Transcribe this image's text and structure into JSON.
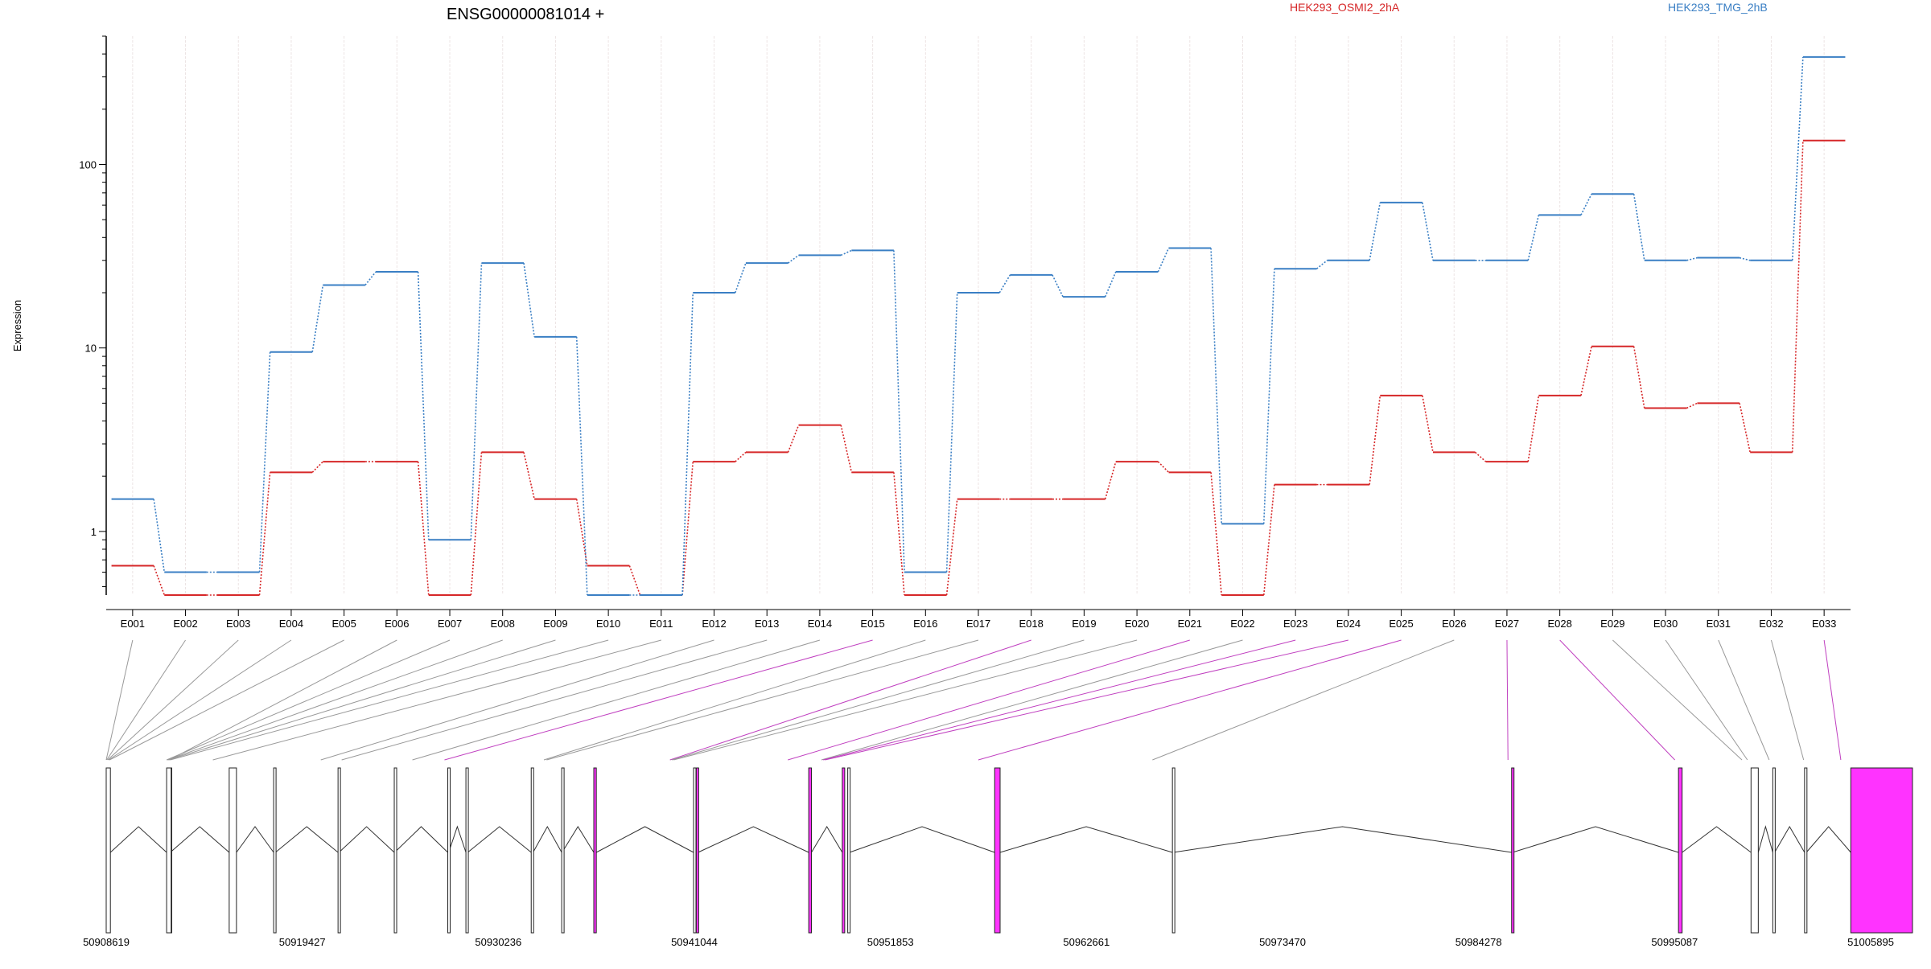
{
  "chart_data": {
    "type": "line",
    "title": "ENSG00000081014 +",
    "ylabel": "Expression",
    "xlabel": "",
    "y_scale": "log",
    "ylim": [
      0.45,
      500
    ],
    "y_ticks": [
      {
        "value": 1,
        "label": "1"
      },
      {
        "value": 10,
        "label": "10"
      },
      {
        "value": 100,
        "label": "100"
      }
    ],
    "grid": true,
    "legend": "top",
    "categories": [
      "E001",
      "E002",
      "E003",
      "E004",
      "E005",
      "E006",
      "E007",
      "E008",
      "E009",
      "E010",
      "E011",
      "E012",
      "E013",
      "E014",
      "E015",
      "E016",
      "E017",
      "E018",
      "E019",
      "E020",
      "E021",
      "E022",
      "E023",
      "E024",
      "E025",
      "E026",
      "E027",
      "E028",
      "E029",
      "E030",
      "E031",
      "E032",
      "E033"
    ],
    "series": [
      {
        "name": "HEK293_OSMI2_2hA",
        "color": "#d62728",
        "values": [
          0.65,
          0.45,
          0.45,
          2.1,
          2.4,
          2.4,
          0.45,
          2.7,
          1.5,
          0.65,
          0.45,
          2.4,
          2.7,
          3.8,
          2.1,
          0.45,
          1.5,
          1.5,
          1.5,
          2.4,
          2.1,
          0.45,
          1.8,
          1.8,
          5.5,
          2.7,
          2.4,
          5.5,
          10.2,
          4.7,
          5.0,
          2.7,
          135
        ]
      },
      {
        "name": "HEK293_TMG_2hB",
        "color": "#3a7fc4",
        "values": [
          1.5,
          0.6,
          0.6,
          9.5,
          22,
          26,
          0.9,
          29,
          11.5,
          0.45,
          0.45,
          20,
          29,
          32,
          34,
          0.6,
          20,
          25,
          19,
          26,
          35,
          1.1,
          27,
          30,
          62,
          30,
          30,
          53,
          69,
          30,
          31,
          30,
          385
        ]
      }
    ],
    "gene_model": {
      "coordinate_labels": [
        "50908619",
        "50919427",
        "50930236",
        "50941044",
        "50951853",
        "50962661",
        "50973470",
        "50984278",
        "50995087",
        "51005895"
      ],
      "exon_color_significant": "#ff33ff",
      "exon_color_normal": "#ffffff",
      "exon_bins": [
        {
          "start": 50908619,
          "end": 50908850,
          "significant": false
        },
        {
          "start": 50912100,
          "end": 50912150,
          "significant": false
        },
        {
          "start": 50911950,
          "end": 50912200,
          "significant": false
        },
        {
          "start": 50915400,
          "end": 50915800,
          "significant": false
        },
        {
          "start": 50917850,
          "end": 50917950,
          "significant": false
        },
        {
          "start": 50921400,
          "end": 50921450,
          "significant": false
        },
        {
          "start": 50924500,
          "end": 50924520,
          "significant": false
        },
        {
          "start": 50927450,
          "end": 50927500,
          "significant": false
        },
        {
          "start": 50928450,
          "end": 50928550,
          "significant": false
        },
        {
          "start": 50932050,
          "end": 50932150,
          "significant": false
        },
        {
          "start": 50933730,
          "end": 50933750,
          "significant": false
        },
        {
          "start": 50935500,
          "end": 50935640,
          "significant": true
        },
        {
          "start": 50941000,
          "end": 50941100,
          "significant": false
        },
        {
          "start": 50941150,
          "end": 50941250,
          "significant": true
        },
        {
          "start": 50947350,
          "end": 50947500,
          "significant": true
        },
        {
          "start": 50949200,
          "end": 50949300,
          "significant": true
        },
        {
          "start": 50949500,
          "end": 50949600,
          "significant": false
        },
        {
          "start": 50957600,
          "end": 50957900,
          "significant": true
        },
        {
          "start": 50967400,
          "end": 50967450,
          "significant": false
        },
        {
          "start": 50986100,
          "end": 50986150,
          "significant": true
        },
        {
          "start": 50995300,
          "end": 50995500,
          "significant": true
        },
        {
          "start": 50999300,
          "end": 50999700,
          "significant": false
        },
        {
          "start": 51000500,
          "end": 51000600,
          "significant": false
        },
        {
          "start": 51002250,
          "end": 51002350,
          "significant": false
        },
        {
          "start": 51004800,
          "end": 51008200,
          "significant": true
        }
      ],
      "exon_links": [
        {
          "exon": 1,
          "coord": 50908619,
          "significant": false
        },
        {
          "exon": 2,
          "coord": 50908650,
          "significant": false
        },
        {
          "exon": 3,
          "coord": 50908700,
          "significant": false
        },
        {
          "exon": 4,
          "coord": 50908750,
          "significant": false
        },
        {
          "exon": 5,
          "coord": 50908800,
          "significant": false
        },
        {
          "exon": 6,
          "coord": 50912100,
          "significant": false
        },
        {
          "exon": 7,
          "coord": 50911950,
          "significant": false
        },
        {
          "exon": 8,
          "coord": 50912000,
          "significant": false
        },
        {
          "exon": 9,
          "coord": 50912050,
          "significant": false
        },
        {
          "exon": 10,
          "coord": 50912150,
          "significant": false
        },
        {
          "exon": 11,
          "coord": 50914500,
          "significant": false
        },
        {
          "exon": 12,
          "coord": 50920450,
          "significant": false
        },
        {
          "exon": 13,
          "coord": 50921600,
          "significant": false
        },
        {
          "exon": 14,
          "coord": 50925500,
          "significant": false
        },
        {
          "exon": 15,
          "coord": 50927270,
          "significant": true
        },
        {
          "exon": 16,
          "coord": 50932750,
          "significant": false
        },
        {
          "exon": 17,
          "coord": 50932900,
          "significant": false
        },
        {
          "exon": 18,
          "coord": 50939700,
          "significant": true
        },
        {
          "exon": 19,
          "coord": 50939800,
          "significant": false
        },
        {
          "exon": 20,
          "coord": 50939900,
          "significant": false
        },
        {
          "exon": 21,
          "coord": 50946200,
          "significant": true
        },
        {
          "exon": 22,
          "coord": 50948050,
          "significant": false
        },
        {
          "exon": 23,
          "coord": 50948150,
          "significant": true
        },
        {
          "exon": 24,
          "coord": 50948250,
          "significant": true
        },
        {
          "exon": 25,
          "coord": 50956700,
          "significant": true
        },
        {
          "exon": 26,
          "coord": 50966300,
          "significant": false
        },
        {
          "exon": 27,
          "coord": 50985900,
          "significant": true
        },
        {
          "exon": 28,
          "coord": 50995100,
          "significant": true
        },
        {
          "exon": 29,
          "coord": 50998800,
          "significant": false
        },
        {
          "exon": 30,
          "coord": 50999100,
          "significant": false
        },
        {
          "exon": 31,
          "coord": 51000300,
          "significant": false
        },
        {
          "exon": 32,
          "coord": 51002200,
          "significant": false
        },
        {
          "exon": 33,
          "coord": 51004250,
          "significant": true
        }
      ]
    }
  }
}
